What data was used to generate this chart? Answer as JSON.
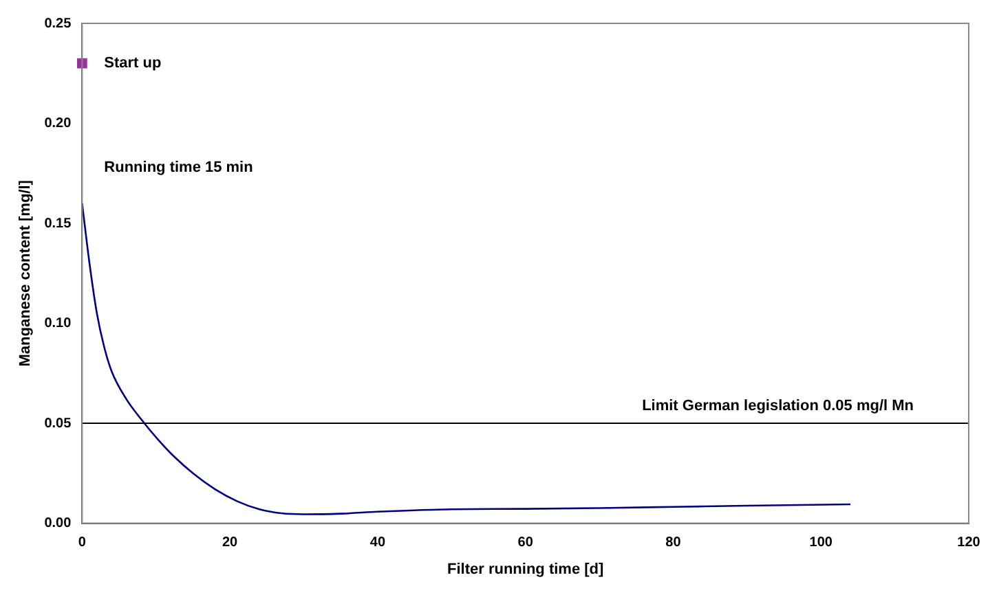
{
  "chart_data": {
    "type": "line",
    "xlabel": "Filter running time [d]",
    "ylabel": "Manganese content [mg/l]",
    "xlim": [
      0,
      120
    ],
    "xticks": [
      0,
      20,
      40,
      60,
      80,
      100,
      120
    ],
    "ylim": [
      0,
      0.25
    ],
    "yticks": [
      {
        "value": 0,
        "label": "0.00"
      },
      {
        "value": 0.05,
        "label": "0.05"
      },
      {
        "value": 0.1,
        "label": "0.10"
      },
      {
        "value": 0.15,
        "label": "0.15"
      },
      {
        "value": 0.2,
        "label": "0.20"
      },
      {
        "value": 0.25,
        "label": "0.25"
      }
    ],
    "grid": false,
    "legend": false,
    "marker": "none",
    "line_style": "solid",
    "series": [
      {
        "color": "#000080",
        "x": [
          0,
          1,
          2,
          3,
          4,
          6,
          8,
          10,
          12,
          15,
          18,
          21,
          24,
          27,
          30,
          35,
          40,
          45,
          50,
          60,
          70,
          80,
          90,
          104
        ],
        "values": [
          0.16,
          0.13,
          0.105,
          0.088,
          0.076,
          0.062,
          0.052,
          0.043,
          0.035,
          0.025,
          0.017,
          0.011,
          0.007,
          0.005,
          0.0045,
          0.0048,
          0.0058,
          0.0065,
          0.007,
          0.0072,
          0.0076,
          0.0082,
          0.0088,
          0.0095
        ]
      },
      {
        "type": "scatter",
        "marker": "square",
        "color": "#993399",
        "x": [
          0
        ],
        "values": [
          0.23
        ]
      }
    ],
    "ref_lines": [
      {
        "axis": "y",
        "value": 0.05,
        "label": "Limit German legislation 0.05 mg/l Mn",
        "color": "#000000"
      }
    ],
    "annotations": [
      {
        "text": "Start up",
        "x": 0,
        "y": 0.23
      },
      {
        "text": "Running time 15 min",
        "x": 0,
        "y": 0.16
      }
    ]
  }
}
